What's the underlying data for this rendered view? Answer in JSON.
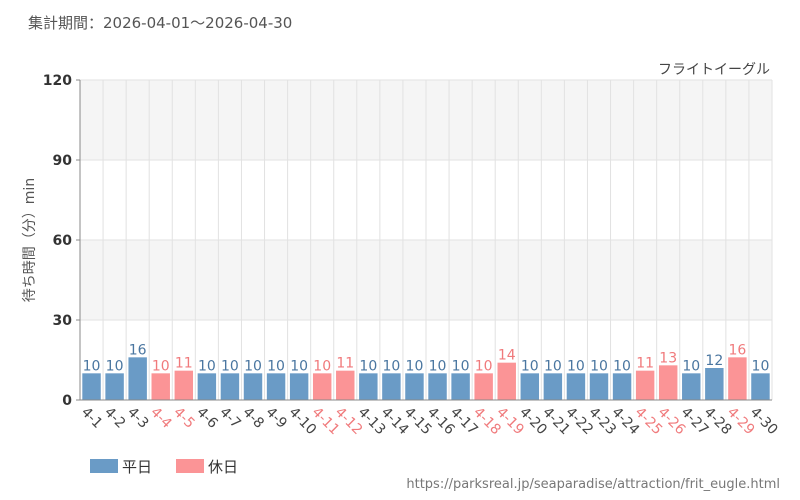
{
  "period_label": "集計期間：2026-04-01～2026-04-30",
  "attraction_name": "フライトイーグル",
  "source_url": "https://parksreal.jp/seaparadise/attraction/frit_eugle.html",
  "colors": {
    "weekday": "#6a9bc6",
    "holiday": "#fb9496",
    "weekday_label": "#4a76a0",
    "holiday_label": "#f07a7c",
    "axis_text": "#444444"
  },
  "legend": [
    {
      "label": "平日",
      "kind": "weekday"
    },
    {
      "label": "休日",
      "kind": "holiday"
    }
  ],
  "chart_data": {
    "type": "bar",
    "title": "",
    "ylabel": "待ち時間（分）min",
    "xlabel": "",
    "ylim": [
      0,
      120
    ],
    "yticks": [
      0,
      30,
      60,
      90,
      120
    ],
    "grid": true,
    "legend_position": "bottom-left",
    "categories": [
      "4-1",
      "4-2",
      "4-3",
      "4-4",
      "4-5",
      "4-6",
      "4-7",
      "4-8",
      "4-9",
      "4-10",
      "4-11",
      "4-12",
      "4-13",
      "4-14",
      "4-15",
      "4-16",
      "4-17",
      "4-18",
      "4-19",
      "4-20",
      "4-21",
      "4-22",
      "4-23",
      "4-24",
      "4-25",
      "4-26",
      "4-27",
      "4-28",
      "4-29",
      "4-30"
    ],
    "values": [
      10,
      10,
      16,
      10,
      11,
      10,
      10,
      10,
      10,
      10,
      10,
      11,
      10,
      10,
      10,
      10,
      10,
      10,
      14,
      10,
      10,
      10,
      10,
      10,
      11,
      13,
      10,
      12,
      16,
      10
    ],
    "day_type": [
      "weekday",
      "weekday",
      "weekday",
      "holiday",
      "holiday",
      "weekday",
      "weekday",
      "weekday",
      "weekday",
      "weekday",
      "holiday",
      "holiday",
      "weekday",
      "weekday",
      "weekday",
      "weekday",
      "weekday",
      "holiday",
      "holiday",
      "weekday",
      "weekday",
      "weekday",
      "weekday",
      "weekday",
      "holiday",
      "holiday",
      "weekday",
      "weekday",
      "holiday",
      "weekday"
    ]
  }
}
